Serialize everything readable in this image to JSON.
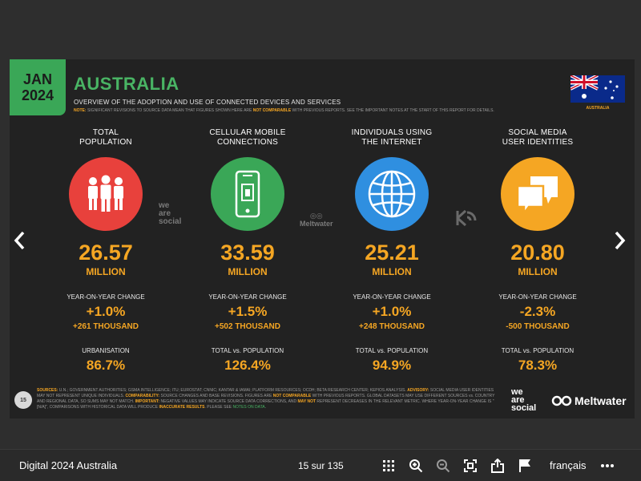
{
  "slide": {
    "date_month": "JAN",
    "date_year": "2024",
    "title": "AUSTRALIA",
    "subtitle": "OVERVIEW OF THE ADOPTION AND USE OF CONNECTED DEVICES AND SERVICES",
    "note_prefix": "NOTE:",
    "note_text_1": " SIGNIFICANT REVISIONS TO SOURCE DATA MEAN THAT FIGURES SHOWN HERE ARE ",
    "note_highlight": "NOT COMPARABLE",
    "note_text_2": " WITH PREVIOUS REPORTS. SEE THE IMPORTANT NOTES AT THE START OF THIS REPORT FOR DETAILS.",
    "flag_label": "AUSTRALIA",
    "metrics": [
      {
        "head_line1": "TOTAL",
        "head_line2": "POPULATION",
        "value": "26.57",
        "unit": "MILLION",
        "change_label": "YEAR-ON-YEAR CHANGE",
        "change_pct": "+1.0%",
        "change_abs": "+261 THOUSAND",
        "extra_label": "URBANISATION",
        "extra_value": "86.7%",
        "color": "#e8413c",
        "icon": "people-icon"
      },
      {
        "head_line1": "CELLULAR MOBILE",
        "head_line2": "CONNECTIONS",
        "value": "33.59",
        "unit": "MILLION",
        "change_label": "YEAR-ON-YEAR CHANGE",
        "change_pct": "+1.5%",
        "change_abs": "+502 THOUSAND",
        "extra_label": "TOTAL vs. POPULATION",
        "extra_value": "126.4%",
        "color": "#3aa757",
        "icon": "mobile-phone-icon"
      },
      {
        "head_line1": "INDIVIDUALS USING",
        "head_line2": "THE INTERNET",
        "value": "25.21",
        "unit": "MILLION",
        "change_label": "YEAR-ON-YEAR CHANGE",
        "change_pct": "+1.0%",
        "change_abs": "+248 THOUSAND",
        "extra_label": "TOTAL vs. POPULATION",
        "extra_value": "94.9%",
        "color": "#2f8fe0",
        "icon": "globe-icon"
      },
      {
        "head_line1": "SOCIAL MEDIA",
        "head_line2": "USER IDENTITIES",
        "value": "20.80",
        "unit": "MILLION",
        "change_label": "YEAR-ON-YEAR CHANGE",
        "change_pct": "-2.3%",
        "change_abs": "-500 THOUSAND",
        "extra_label": "TOTAL vs. POPULATION",
        "extra_value": "78.3%",
        "color": "#f5a623",
        "icon": "speech-bubbles-icon"
      }
    ],
    "we_are_social": [
      "we",
      "are",
      "social"
    ],
    "meltwater": "Meltwater",
    "sources_label": "SOURCES:",
    "sources_text_1": " U.N.; GOVERNMENT AUTHORITIES; GSMA INTELLIGENCE; ITU; EUROSTAT; CNNIC; KANTAR & IAMAI; PLATFORM RESOURCES; OCDH; BETA RESEARCH CENTER; KEPIOS ANALYSIS. ",
    "advisory_label": "ADVISORY:",
    "advisory_text_1": " SOCIAL MEDIA USER IDENTITIES MAY NOT REPRESENT UNIQUE INDIVIDUALS. ",
    "comparability_label": "COMPARABILITY:",
    "comparability_text": " SOURCE CHANGES AND BASE REVISIONS. FIGURES ARE ",
    "not_comparable": "NOT COMPARABLE",
    "comparability_text_2": " WITH PREVIOUS REPORTS. GLOBAL DATASETS MAY USE DIFFERENT SOURCES vs. COUNTRY AND REGIONAL DATA, SO SUMS MAY NOT MATCH. ",
    "important_label": "IMPORTANT:",
    "important_text": " NEGATIVE VALUES MAY INDICATE SOURCE DATA CORRECTIONS, AND ",
    "may_not": "MAY NOT",
    "important_text_2": " REPRESENT DECREASES IN THE RELEVANT METRIC. WHERE YEAR-ON-YEAR CHANGE IS \"[N/A]\", COMPARISONS WITH HISTORICAL DATA WILL PRODUCE ",
    "inaccurate": "INACCURATE RESULTS",
    "important_text_3": ". PLEASE SEE ",
    "notes_on_data": "NOTES ON DATA",
    "important_text_4": ".",
    "page_number": "15"
  },
  "footer": {
    "doc_title": "Digital 2024 Australia",
    "pager": "15 sur 135",
    "language": "français"
  },
  "colors": {
    "accent_green": "#3aa757",
    "accent_orange": "#f5a623"
  }
}
